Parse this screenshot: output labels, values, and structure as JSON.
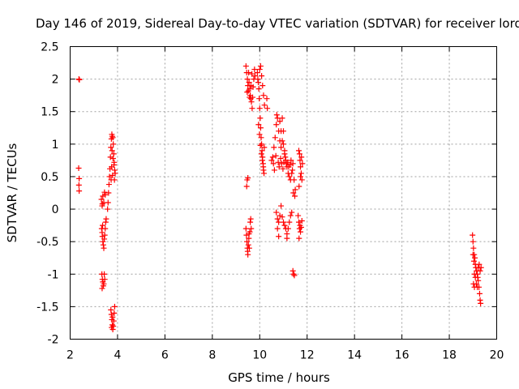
{
  "chart_data": {
    "type": "scatter",
    "title": "Day 146 of 2019, Sidereal Day-to-day VTEC variation (SDTVAR) for receiver lord",
    "xlabel": "GPS time / hours",
    "ylabel": "SDTVAR / TECUs",
    "xlim": [
      2,
      20
    ],
    "ylim": [
      -2,
      2.5
    ],
    "xticks": [
      2,
      4,
      6,
      8,
      10,
      12,
      14,
      16,
      18,
      20
    ],
    "yticks": [
      -2,
      -1.5,
      -1,
      -0.5,
      0,
      0.5,
      1,
      1.5,
      2,
      2.5
    ],
    "xtick_labels": [
      "2",
      "4",
      "6",
      "8",
      "10",
      "12",
      "14",
      "16",
      "18",
      "20"
    ],
    "ytick_labels": [
      "-2",
      "-1.5",
      "-1",
      "-0.5",
      "0",
      "0.5",
      "1",
      "1.5",
      "2",
      "2.5"
    ],
    "grid": true,
    "marker": "plus",
    "color": "#ff0000",
    "series": [
      {
        "points": [
          [
            2.37,
            2.0
          ],
          [
            2.39,
            1.99
          ],
          [
            2.36,
            0.63
          ],
          [
            2.38,
            0.47
          ],
          [
            2.37,
            0.37
          ],
          [
            2.38,
            0.28
          ],
          [
            3.32,
            0.15
          ],
          [
            3.35,
            0.05
          ],
          [
            3.38,
            0.2
          ],
          [
            3.42,
            0.1
          ],
          [
            3.45,
            0.26
          ],
          [
            3.48,
            0.22
          ],
          [
            3.36,
            0.08
          ],
          [
            3.33,
            -0.3
          ],
          [
            3.35,
            -0.36
          ],
          [
            3.36,
            -0.42
          ],
          [
            3.38,
            -0.5
          ],
          [
            3.4,
            -0.55
          ],
          [
            3.42,
            -0.6
          ],
          [
            3.44,
            -0.46
          ],
          [
            3.46,
            -0.4
          ],
          [
            3.48,
            -0.3
          ],
          [
            3.5,
            -0.2
          ],
          [
            3.52,
            -0.15
          ],
          [
            3.37,
            -0.25
          ],
          [
            3.34,
            -1.0
          ],
          [
            3.36,
            -1.08
          ],
          [
            3.38,
            -1.12
          ],
          [
            3.4,
            -1.18
          ],
          [
            3.42,
            -1.15
          ],
          [
            3.44,
            -1.0
          ],
          [
            3.46,
            -1.08
          ],
          [
            3.35,
            -1.22
          ],
          [
            3.58,
            0.0
          ],
          [
            3.6,
            0.1
          ],
          [
            3.62,
            0.25
          ],
          [
            3.64,
            0.38
          ],
          [
            3.66,
            0.5
          ],
          [
            3.68,
            0.62
          ],
          [
            3.7,
            0.8
          ],
          [
            3.72,
            0.95
          ],
          [
            3.74,
            1.08
          ],
          [
            3.76,
            1.15
          ],
          [
            3.78,
            1.12
          ],
          [
            3.8,
            1.1
          ],
          [
            3.82,
            1.0
          ],
          [
            3.84,
            0.85
          ],
          [
            3.86,
            0.72
          ],
          [
            3.88,
            0.6
          ],
          [
            3.9,
            0.55
          ],
          [
            3.87,
            0.45
          ],
          [
            3.85,
            0.68
          ],
          [
            3.75,
            0.65
          ],
          [
            3.73,
            0.45
          ],
          [
            3.77,
            0.9
          ],
          [
            3.81,
            0.78
          ],
          [
            3.79,
            0.52
          ],
          [
            3.72,
            -1.55
          ],
          [
            3.74,
            -1.62
          ],
          [
            3.76,
            -1.7
          ],
          [
            3.78,
            -1.78
          ],
          [
            3.8,
            -1.85
          ],
          [
            3.82,
            -1.8
          ],
          [
            3.84,
            -1.72
          ],
          [
            3.86,
            -1.6
          ],
          [
            3.88,
            -1.5
          ],
          [
            3.75,
            -1.82
          ],
          [
            3.79,
            -1.66
          ],
          [
            9.42,
            2.2
          ],
          [
            9.45,
            2.1
          ],
          [
            9.48,
            2.0
          ],
          [
            9.5,
            1.9
          ],
          [
            9.52,
            1.82
          ],
          [
            9.55,
            1.95
          ],
          [
            9.58,
            1.85
          ],
          [
            9.6,
            1.75
          ],
          [
            9.62,
            1.7
          ],
          [
            9.65,
            1.65
          ],
          [
            9.68,
            1.55
          ],
          [
            9.7,
            1.72
          ],
          [
            9.72,
            1.88
          ],
          [
            9.75,
            2.0
          ],
          [
            9.78,
            2.15
          ],
          [
            9.8,
            2.05
          ],
          [
            9.47,
            1.8
          ],
          [
            9.53,
            2.1
          ],
          [
            9.57,
            1.72
          ],
          [
            9.63,
            1.9
          ],
          [
            9.67,
            2.08
          ],
          [
            9.45,
            0.35
          ],
          [
            9.47,
            0.45
          ],
          [
            9.5,
            0.48
          ],
          [
            9.42,
            -0.3
          ],
          [
            9.44,
            -0.4
          ],
          [
            9.46,
            -0.5
          ],
          [
            9.48,
            -0.6
          ],
          [
            9.5,
            -0.7
          ],
          [
            9.52,
            -0.55
          ],
          [
            9.54,
            -0.45
          ],
          [
            9.56,
            -0.6
          ],
          [
            9.58,
            -0.35
          ],
          [
            9.6,
            -0.2
          ],
          [
            9.62,
            -0.15
          ],
          [
            9.64,
            -0.3
          ],
          [
            9.49,
            -0.65
          ],
          [
            9.55,
            -0.38
          ],
          [
            9.9,
            2.1
          ],
          [
            9.92,
            2.0
          ],
          [
            9.94,
            1.95
          ],
          [
            9.96,
            1.85
          ],
          [
            9.98,
            1.7
          ],
          [
            10.0,
            1.55
          ],
          [
            10.02,
            1.4
          ],
          [
            10.04,
            1.25
          ],
          [
            10.06,
            1.1
          ],
          [
            10.08,
            1.0
          ],
          [
            10.1,
            0.9
          ],
          [
            10.12,
            0.8
          ],
          [
            10.14,
            0.7
          ],
          [
            10.16,
            0.6
          ],
          [
            10.18,
            0.55
          ],
          [
            10.0,
            2.15
          ],
          [
            10.04,
            2.2
          ],
          [
            10.08,
            2.05
          ],
          [
            10.12,
            1.9
          ],
          [
            10.16,
            1.75
          ],
          [
            10.2,
            1.6
          ],
          [
            9.95,
            1.3
          ],
          [
            9.99,
            1.15
          ],
          [
            10.03,
            0.98
          ],
          [
            10.07,
            0.85
          ],
          [
            10.11,
            0.75
          ],
          [
            10.15,
            0.65
          ],
          [
            10.19,
            0.95
          ],
          [
            10.3,
            1.7
          ],
          [
            10.32,
            1.55
          ],
          [
            10.5,
            0.75
          ],
          [
            10.55,
            0.8
          ],
          [
            10.6,
            0.95
          ],
          [
            10.65,
            1.1
          ],
          [
            10.7,
            1.3
          ],
          [
            10.72,
            1.45
          ],
          [
            10.75,
            1.4
          ],
          [
            10.8,
            1.2
          ],
          [
            10.85,
            1.05
          ],
          [
            10.9,
            0.95
          ],
          [
            10.95,
            1.05
          ],
          [
            11.0,
            1.2
          ],
          [
            11.05,
            0.9
          ],
          [
            11.1,
            0.75
          ],
          [
            11.15,
            0.65
          ],
          [
            11.2,
            0.55
          ],
          [
            11.25,
            0.5
          ],
          [
            11.3,
            0.45
          ],
          [
            11.35,
            0.55
          ],
          [
            11.4,
            0.7
          ],
          [
            11.45,
            0.45
          ],
          [
            11.5,
            0.3
          ],
          [
            10.58,
            0.7
          ],
          [
            10.62,
            0.6
          ],
          [
            10.68,
            0.82
          ],
          [
            10.78,
            0.72
          ],
          [
            10.82,
            0.65
          ],
          [
            10.88,
            0.78
          ],
          [
            10.92,
            0.7
          ],
          [
            10.98,
            0.62
          ],
          [
            11.02,
            0.72
          ],
          [
            11.08,
            0.8
          ],
          [
            11.12,
            0.7
          ],
          [
            11.18,
            0.72
          ],
          [
            11.22,
            0.65
          ],
          [
            11.28,
            0.68
          ],
          [
            11.32,
            0.75
          ],
          [
            11.38,
            0.6
          ],
          [
            11.42,
            0.25
          ],
          [
            11.48,
            0.2
          ],
          [
            10.85,
            1.35
          ],
          [
            10.9,
            1.2
          ],
          [
            10.95,
            1.4
          ],
          [
            11.0,
            1.0
          ],
          [
            11.05,
            0.85
          ],
          [
            10.7,
            -0.05
          ],
          [
            10.75,
            -0.15
          ],
          [
            10.8,
            -0.2
          ],
          [
            10.85,
            -0.1
          ],
          [
            10.9,
            0.05
          ],
          [
            10.95,
            -0.12
          ],
          [
            11.0,
            -0.2
          ],
          [
            11.05,
            -0.25
          ],
          [
            11.1,
            -0.3
          ],
          [
            11.15,
            -0.38
          ],
          [
            11.2,
            -0.3
          ],
          [
            11.25,
            -0.2
          ],
          [
            11.3,
            -0.1
          ],
          [
            11.35,
            -0.05
          ],
          [
            10.75,
            -0.3
          ],
          [
            10.8,
            -0.42
          ],
          [
            11.15,
            -0.45
          ],
          [
            11.4,
            -0.95
          ],
          [
            11.43,
            -1.0
          ],
          [
            11.46,
            -1.02
          ],
          [
            11.65,
            0.9
          ],
          [
            11.68,
            0.85
          ],
          [
            11.7,
            0.75
          ],
          [
            11.72,
            0.65
          ],
          [
            11.75,
            0.55
          ],
          [
            11.78,
            0.45
          ],
          [
            11.8,
            0.7
          ],
          [
            11.72,
            0.5
          ],
          [
            11.76,
            0.8
          ],
          [
            11.66,
            0.35
          ],
          [
            11.62,
            -0.1
          ],
          [
            11.65,
            -0.2
          ],
          [
            11.68,
            -0.3
          ],
          [
            11.7,
            -0.25
          ],
          [
            11.72,
            -0.35
          ],
          [
            11.75,
            -0.28
          ],
          [
            11.78,
            -0.18
          ],
          [
            11.66,
            -0.45
          ],
          [
            18.98,
            -0.4
          ],
          [
            19.0,
            -0.5
          ],
          [
            19.02,
            -0.6
          ],
          [
            19.05,
            -0.7
          ],
          [
            19.08,
            -0.75
          ],
          [
            19.1,
            -0.85
          ],
          [
            19.12,
            -0.9
          ],
          [
            19.15,
            -0.95
          ],
          [
            19.18,
            -1.0
          ],
          [
            19.2,
            -1.05
          ],
          [
            19.22,
            -1.1
          ],
          [
            19.25,
            -1.2
          ],
          [
            19.28,
            -1.3
          ],
          [
            19.3,
            -1.4
          ],
          [
            19.32,
            -1.45
          ],
          [
            19.0,
            -0.7
          ],
          [
            19.04,
            -0.8
          ],
          [
            19.06,
            -1.0
          ],
          [
            19.1,
            -1.05
          ],
          [
            19.14,
            -1.15
          ],
          [
            19.18,
            -1.2
          ],
          [
            19.22,
            -0.9
          ],
          [
            19.26,
            -0.85
          ],
          [
            19.3,
            -0.95
          ],
          [
            19.02,
            -1.15
          ],
          [
            19.06,
            -1.2
          ],
          [
            19.34,
            -0.9
          ]
        ]
      }
    ]
  }
}
